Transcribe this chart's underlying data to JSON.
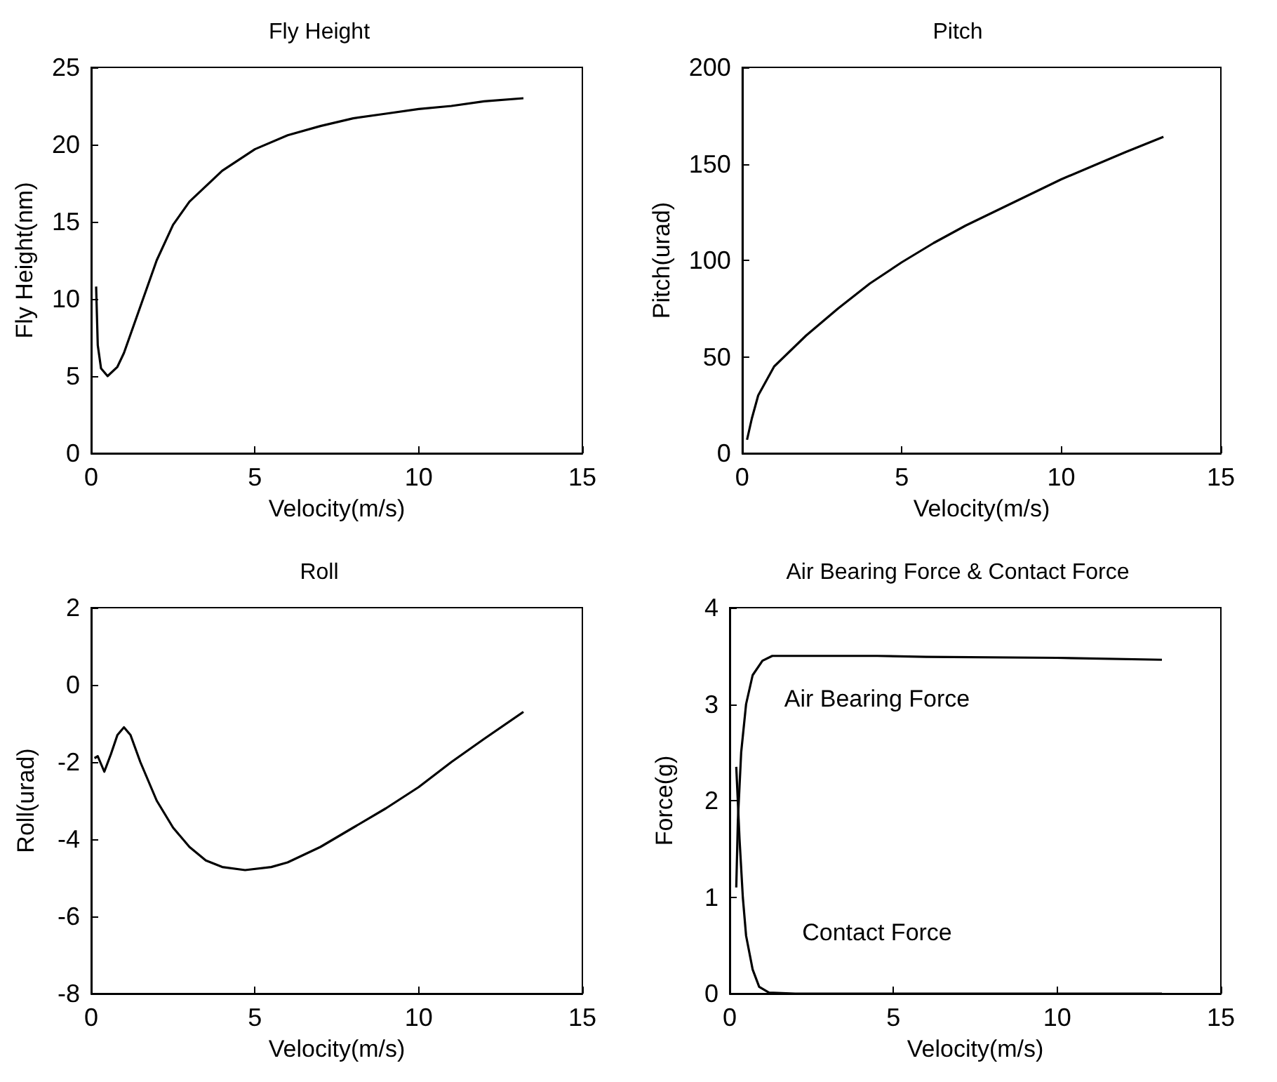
{
  "chart_data": [
    {
      "type": "line",
      "title": "Fly Height",
      "xlabel": "Velocity(m/s)",
      "ylabel": "Fly Height(nm)",
      "xlim": [
        0,
        15
      ],
      "xticks": [
        0,
        5,
        10,
        15
      ],
      "ylim": [
        0,
        25
      ],
      "yticks": [
        0,
        5,
        10,
        15,
        20,
        25
      ],
      "series": [
        {
          "color": "#000000",
          "x": [
            0.15,
            0.2,
            0.3,
            0.5,
            0.8,
            1.0,
            1.5,
            2,
            2.5,
            3,
            4,
            5,
            6,
            7,
            8,
            9,
            10,
            11,
            12,
            13.2
          ],
          "values": [
            10.8,
            7,
            5.5,
            5.0,
            5.6,
            6.5,
            9.5,
            12.5,
            14.8,
            16.3,
            18.3,
            19.7,
            20.6,
            21.2,
            21.7,
            22.0,
            22.3,
            22.5,
            22.8,
            23.0
          ]
        }
      ]
    },
    {
      "type": "line",
      "title": "Pitch",
      "xlabel": "Velocity(m/s)",
      "ylabel": "Pitch(urad)",
      "xlim": [
        0,
        15
      ],
      "xticks": [
        0,
        5,
        10,
        15
      ],
      "ylim": [
        0,
        200
      ],
      "yticks": [
        0,
        50,
        100,
        150,
        200
      ],
      "series": [
        {
          "color": "#000000",
          "x": [
            0.15,
            0.3,
            0.5,
            1,
            1.5,
            2,
            3,
            4,
            5,
            6,
            7,
            8,
            9,
            10,
            11,
            12,
            13.2
          ],
          "values": [
            7,
            18,
            30,
            45,
            53,
            61,
            75,
            88,
            99,
            109,
            118,
            126,
            134,
            142,
            149,
            156,
            164
          ]
        }
      ]
    },
    {
      "type": "line",
      "title": "Roll",
      "xlabel": "Velocity(m/s)",
      "ylabel": "Roll(urad)",
      "xlim": [
        0,
        15
      ],
      "xticks": [
        0,
        5,
        10,
        15
      ],
      "ylim": [
        -8,
        2
      ],
      "yticks": [
        -8,
        -6,
        -4,
        -2,
        0,
        2
      ],
      "series": [
        {
          "color": "#000000",
          "x": [
            0.1,
            0.2,
            0.4,
            0.6,
            0.8,
            1.0,
            1.2,
            1.5,
            2,
            2.5,
            3,
            3.5,
            4,
            4.7,
            5.5,
            6,
            7,
            8,
            9,
            10,
            11,
            12,
            13.2
          ],
          "values": [
            -1.9,
            -1.85,
            -2.25,
            -1.8,
            -1.3,
            -1.1,
            -1.3,
            -2.0,
            -3.0,
            -3.7,
            -4.2,
            -4.55,
            -4.72,
            -4.8,
            -4.72,
            -4.6,
            -4.2,
            -3.7,
            -3.2,
            -2.65,
            -2.0,
            -1.4,
            -0.7
          ]
        }
      ]
    },
    {
      "type": "line",
      "title": "Air Bearing Force & Contact Force",
      "xlabel": "Velocity(m/s)",
      "ylabel": "Force(g)",
      "xlim": [
        0,
        15
      ],
      "xticks": [
        0,
        5,
        10,
        15
      ],
      "ylim": [
        0,
        4
      ],
      "yticks": [
        0,
        1,
        2,
        3,
        4
      ],
      "series": [
        {
          "name": "Air Bearing Force",
          "color": "#000000",
          "x": [
            0.2,
            0.25,
            0.35,
            0.5,
            0.7,
            1.0,
            1.3,
            3,
            4.5,
            6,
            10,
            13.2
          ],
          "values": [
            1.1,
            1.8,
            2.5,
            3.0,
            3.3,
            3.45,
            3.5,
            3.5,
            3.5,
            3.49,
            3.48,
            3.46
          ]
        },
        {
          "name": "Contact Force",
          "color": "#000000",
          "x": [
            0.2,
            0.3,
            0.4,
            0.5,
            0.7,
            0.9,
            1.2,
            2,
            4.5,
            8,
            13.2
          ],
          "values": [
            2.35,
            1.6,
            1.0,
            0.6,
            0.25,
            0.07,
            0.01,
            0,
            0,
            0,
            0
          ]
        }
      ]
    }
  ]
}
